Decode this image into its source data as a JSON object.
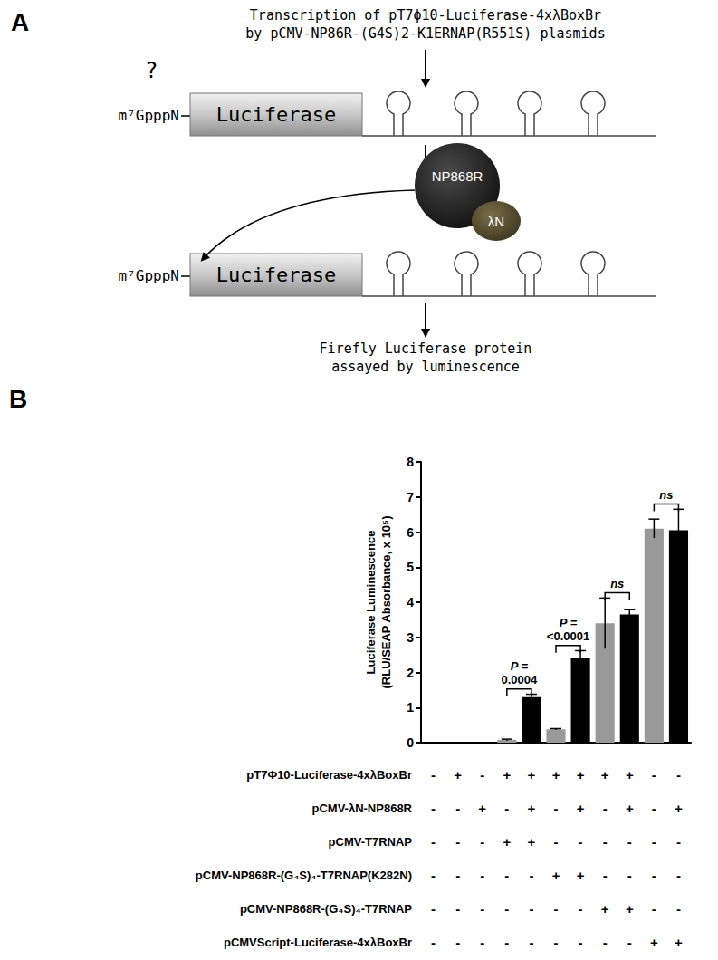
{
  "diagram": {
    "panel_label": "A",
    "header": [
      "Transcription of pT7ϕ10-Luciferase-4xλBoxBr",
      "by pCMV-NP86R-(G4S)2-K1ERNAP(R551S) plasmids"
    ],
    "unknown_cap": "?",
    "cap": "m⁷GpppN",
    "reporter": "Luciferase",
    "protein": "NP868R",
    "tag": "λN",
    "readout": [
      "Firefly Luciferase protein",
      "assayed by luminescence"
    ]
  },
  "chart_data": {
    "type": "bar",
    "panel_label": "B",
    "ylabel": "Luciferase Luminescence (RLU/SEAP Absorbance, x 10⁵)",
    "categories": [
      null,
      null,
      null,
      null,
      null,
      null,
      null,
      null,
      null,
      null,
      null
    ],
    "values": [
      0,
      0,
      0,
      0.08,
      1.3,
      0.38,
      2.4,
      3.4,
      3.65,
      6.1,
      6.05
    ],
    "errors": [
      0,
      0,
      0,
      0.02,
      0.08,
      0.02,
      0.22,
      0.72,
      0.15,
      0.27,
      0.6
    ],
    "colors": [
      "#000000",
      "#000000",
      "#000000",
      "#999999",
      "#000000",
      "#999999",
      "#000000",
      "#999999",
      "#000000",
      "#999999",
      "#000000"
    ],
    "ylim": [
      0,
      8
    ],
    "yticks": [
      0,
      1,
      2,
      3,
      4,
      5,
      6,
      7,
      8
    ],
    "grid": false,
    "comparisons": [
      {
        "between": [
          3,
          4
        ],
        "label": [
          "P =",
          "0.0004"
        ]
      },
      {
        "between": [
          5,
          6
        ],
        "label": [
          "P =",
          "<0.0001"
        ]
      },
      {
        "between": [
          7,
          8
        ],
        "label": [
          "ns"
        ]
      },
      {
        "between": [
          9,
          10
        ],
        "label": [
          "ns"
        ]
      }
    ],
    "conditions": [
      {
        "label": "pT7Φ10-Luciferase-4xλBoxBr",
        "signs": [
          "-",
          "+",
          "-",
          "+",
          "+",
          "+",
          "+",
          "+",
          "+",
          "-",
          "-"
        ]
      },
      {
        "label": "pCMV-λN-NP868R",
        "signs": [
          "-",
          "-",
          "+",
          "-",
          "+",
          "-",
          "+",
          "-",
          "+",
          "-",
          "+"
        ]
      },
      {
        "label": "pCMV-T7RNAP",
        "signs": [
          "-",
          "-",
          "-",
          "+",
          "+",
          "-",
          "-",
          "-",
          "-",
          "-",
          "-"
        ]
      },
      {
        "label": "pCMV-NP868R-(G₄S)₄-T7RNAP(K282N)",
        "signs": [
          "-",
          "-",
          "-",
          "-",
          "-",
          "+",
          "+",
          "-",
          "-",
          "-",
          "-"
        ]
      },
      {
        "label": "pCMV-NP868R-(G₄S)₄-T7RNAP",
        "signs": [
          "-",
          "-",
          "-",
          "-",
          "-",
          "-",
          "-",
          "+",
          "+",
          "-",
          "-"
        ]
      },
      {
        "label": "pCMVScript-Luciferase-4xλBoxBr",
        "signs": [
          "-",
          "-",
          "-",
          "-",
          "-",
          "-",
          "-",
          "-",
          "-",
          "+",
          "+"
        ]
      }
    ]
  }
}
